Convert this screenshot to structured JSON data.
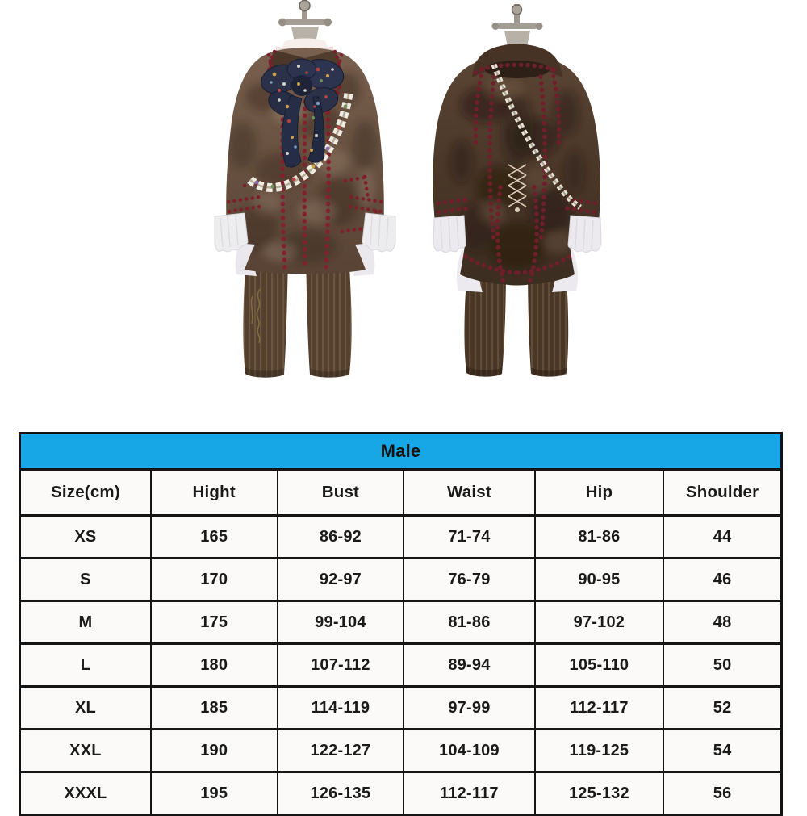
{
  "chart_data": {
    "type": "table",
    "title": "Male",
    "columns": [
      "Size(cm)",
      "Hight",
      "Bust",
      "Waist",
      "Hip",
      "Shoulder"
    ],
    "rows": [
      [
        "XS",
        "165",
        "86-92",
        "71-74",
        "81-86",
        "44"
      ],
      [
        "S",
        "170",
        "92-97",
        "76-79",
        "90-95",
        "46"
      ],
      [
        "M",
        "175",
        "99-104",
        "81-86",
        "97-102",
        "48"
      ],
      [
        "L",
        "180",
        "107-112",
        "89-94",
        "105-110",
        "50"
      ],
      [
        "XL",
        "185",
        "114-119",
        "97-99",
        "112-117",
        "52"
      ],
      [
        "XXL",
        "190",
        "122-127",
        "104-109",
        "119-125",
        "54"
      ],
      [
        "XXXL",
        "195",
        "126-135",
        "112-117",
        "125-132",
        "56"
      ]
    ],
    "layout": "title row spans all columns; photo of costume front and back views above the table"
  },
  "photos": {
    "front_figure": "costume-front-view",
    "back_figure": "costume-back-view"
  },
  "colors": {
    "header_blue": "#18a7e6",
    "table_border": "#151515",
    "cell_background": "#fbfaf8",
    "coat_brown_front": "#6d5747",
    "coat_brown_back": "#4b3829",
    "trim_red": "#82202d",
    "lace_white": "#edecef",
    "text_black": "#1a1a1a"
  }
}
